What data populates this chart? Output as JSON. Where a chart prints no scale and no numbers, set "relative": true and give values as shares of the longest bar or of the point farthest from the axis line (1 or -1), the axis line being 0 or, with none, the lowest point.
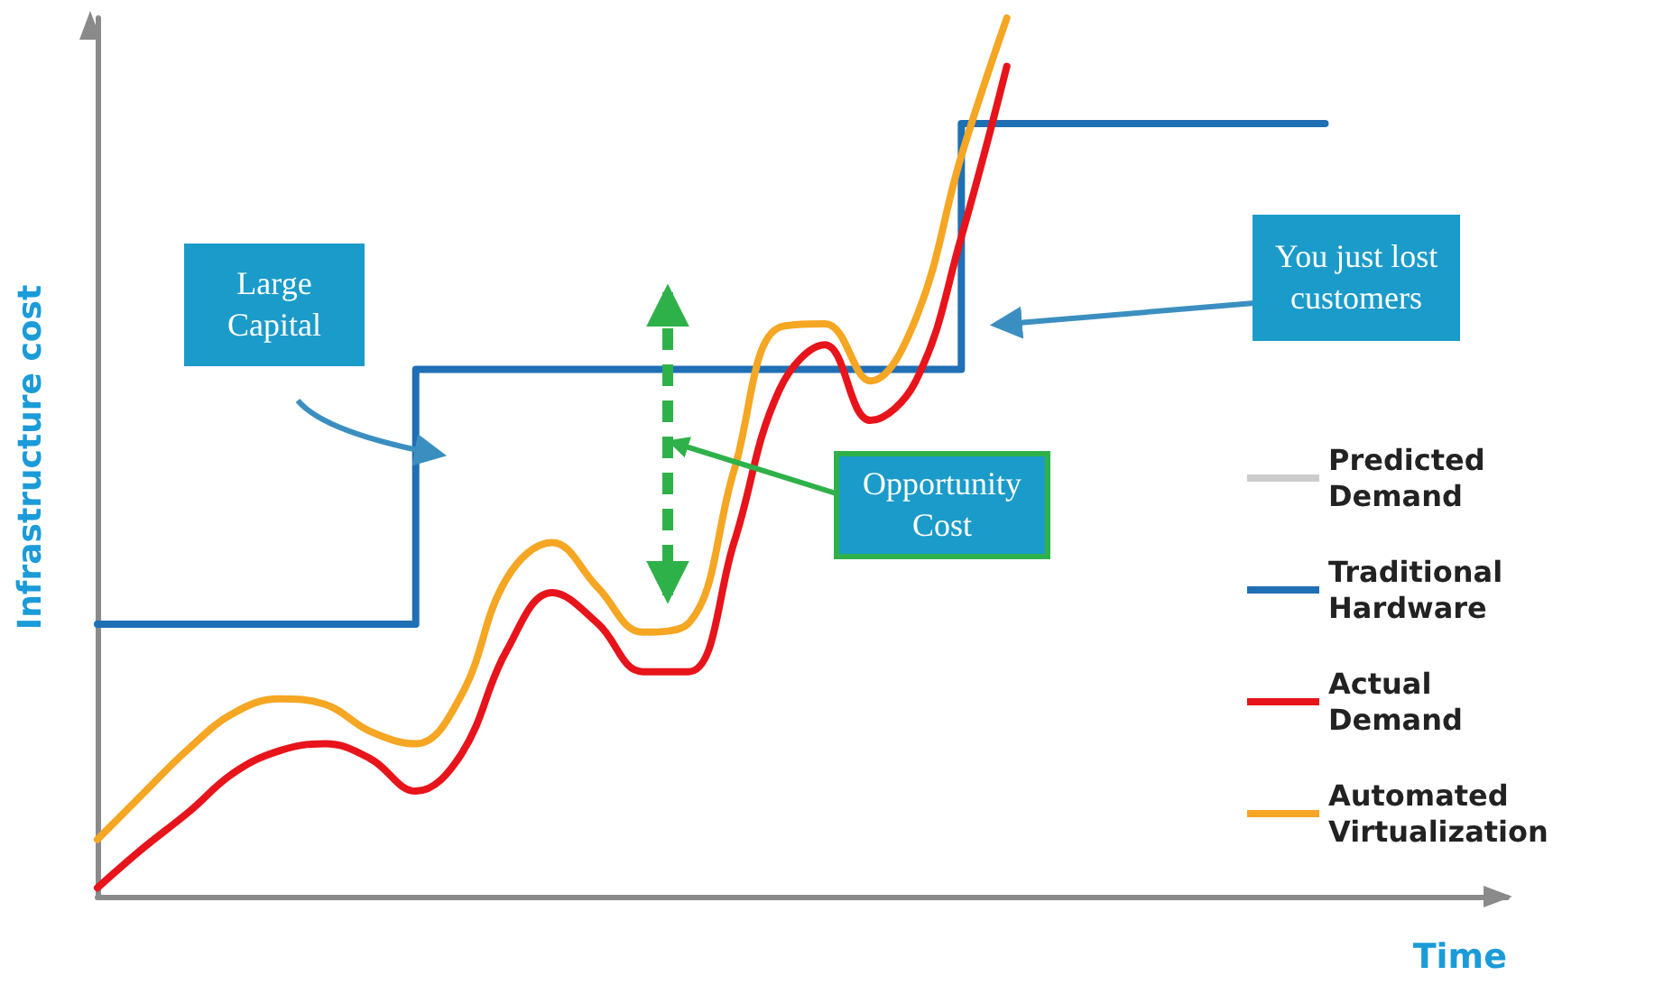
{
  "chart_data": {
    "type": "line",
    "relative": true,
    "xlabel": "Time",
    "ylabel": "Infrastructure cost",
    "legend": "right",
    "grid": false,
    "marker": "none",
    "categories": [
      null,
      null,
      null,
      null,
      null,
      null,
      null,
      null,
      null,
      null,
      null,
      null,
      null,
      null,
      null,
      null,
      null,
      null,
      null,
      null,
      null,
      null,
      null,
      null,
      null,
      null,
      null,
      null,
      null,
      null,
      null,
      null
    ],
    "series": [
      {
        "name": "Predicted Demand",
        "color": "#cccccc",
        "line_style": "dashed",
        "values": [
          null,
          null,
          null,
          null,
          null,
          null,
          null,
          null,
          null,
          null,
          null,
          null,
          null,
          null,
          null,
          null,
          null,
          null,
          null,
          null,
          null,
          null,
          null,
          null,
          null,
          null,
          null,
          null,
          null,
          null,
          null,
          null
        ]
      },
      {
        "name": "Traditional Hardware",
        "type": "step",
        "color": "#1f6fb5",
        "line_style": "solid",
        "values": [
          0.31,
          0.31,
          0.31,
          0.31,
          0.31,
          0.31,
          0.31,
          0.31,
          0.6,
          0.6,
          0.6,
          0.6,
          0.6,
          0.6,
          0.6,
          0.6,
          0.6,
          0.6,
          0.6,
          0.6,
          0.88,
          0.88,
          0.88,
          0.88,
          0.88,
          0.88,
          0.88,
          0.88,
          null,
          null,
          null,
          null
        ]
      },
      {
        "name": "Actual Demand",
        "color": "#e8141b",
        "line_style": "solid",
        "values": [
          0.01,
          0.055,
          0.096,
          0.141,
          0.166,
          0.174,
          0.157,
          0.12,
          0.162,
          0.28,
          0.346,
          0.311,
          0.256,
          0.256,
          0.403,
          0.577,
          0.628,
          0.542,
          0.587,
          0.751,
          0.945,
          null,
          null,
          null,
          null,
          null,
          null,
          null,
          null,
          null,
          null,
          null
        ]
      },
      {
        "name": "Automated Virtualization",
        "color": "#f5a623",
        "line_style": "solid",
        "values": [
          0.065,
          0.117,
          0.168,
          0.209,
          0.225,
          0.219,
          0.188,
          0.174,
          0.229,
          0.362,
          0.403,
          0.352,
          0.301,
          0.311,
          0.485,
          0.648,
          0.652,
          0.587,
          0.658,
          0.843,
          1,
          null,
          null,
          null,
          null,
          null,
          null,
          null,
          null,
          null,
          null,
          null
        ]
      }
    ],
    "annotations": [
      "Large Capital",
      "You just lost customers",
      "Opportunity Cost"
    ]
  }
}
